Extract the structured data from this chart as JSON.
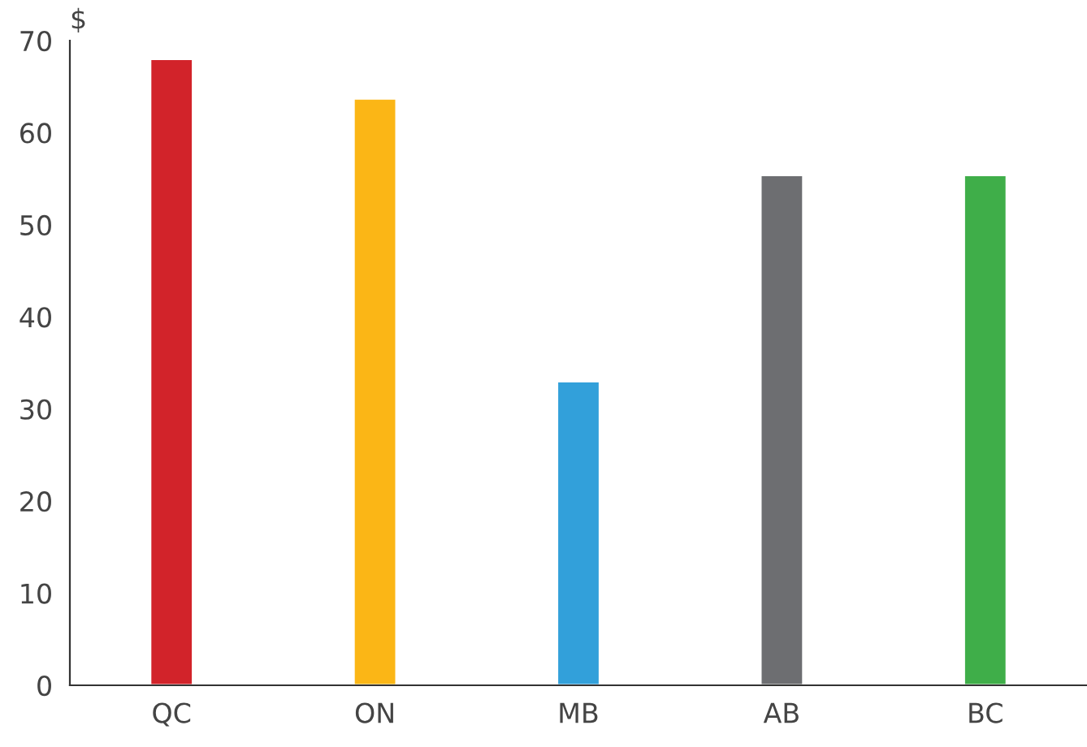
{
  "chart_data": {
    "type": "bar",
    "ylabel": "$",
    "categories": [
      "QC",
      "ON",
      "MB",
      "AB",
      "BC"
    ],
    "values": [
      68,
      63.7,
      33,
      55.4,
      55.4
    ],
    "colors": [
      "#d2232a",
      "#fbb616",
      "#32a0da",
      "#6d6e71",
      "#3fae49"
    ],
    "ylim": [
      0,
      70
    ],
    "yticks": [
      0,
      10,
      20,
      30,
      40,
      50,
      60,
      70
    ],
    "grid": false,
    "legend": false
  }
}
